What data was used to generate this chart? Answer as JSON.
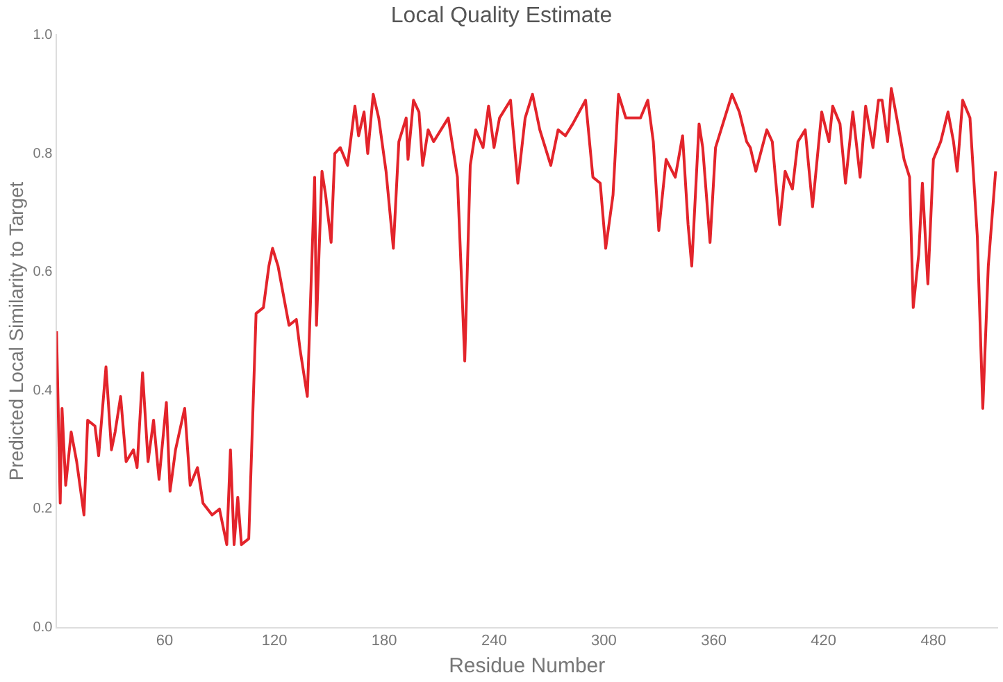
{
  "chart_data": {
    "type": "line",
    "title": "Local Quality Estimate",
    "xlabel": "Residue Number",
    "ylabel": "Predicted Local Similarity to Target",
    "x": [
      1,
      3,
      4,
      6,
      9,
      12,
      16,
      18,
      22,
      24,
      28,
      31,
      33,
      36,
      39,
      43,
      45,
      48,
      51,
      54,
      57,
      61,
      63,
      66,
      71,
      74,
      78,
      81,
      86,
      90,
      94,
      96,
      98,
      100,
      102,
      106,
      110,
      114,
      117,
      119,
      122,
      128,
      132,
      134,
      138,
      142,
      143,
      146,
      148,
      151,
      153,
      156,
      160,
      164,
      166,
      169,
      171,
      174,
      177,
      181,
      185,
      188,
      192,
      193,
      196,
      199,
      201,
      204,
      207,
      211,
      215,
      220,
      224,
      227,
      230,
      234,
      237,
      240,
      243,
      249,
      253,
      257,
      261,
      265,
      271,
      275,
      279,
      283,
      290,
      294,
      298,
      301,
      305,
      308,
      312,
      316,
      320,
      324,
      327,
      330,
      334,
      339,
      343,
      346,
      348,
      352,
      354,
      358,
      361,
      366,
      370,
      374,
      378,
      380,
      383,
      389,
      392,
      396,
      399,
      403,
      406,
      410,
      414,
      419,
      423,
      425,
      429,
      432,
      436,
      440,
      443,
      447,
      450,
      452,
      455,
      457,
      460,
      464,
      467,
      469,
      472,
      474,
      477,
      480,
      484,
      488,
      491,
      493,
      496,
      500,
      504,
      507,
      510,
      514
    ],
    "series": [
      {
        "color": "#e3242b",
        "values": [
          0.5,
          0.21,
          0.37,
          0.24,
          0.33,
          0.28,
          0.19,
          0.35,
          0.34,
          0.29,
          0.44,
          0.3,
          0.33,
          0.39,
          0.28,
          0.3,
          0.27,
          0.43,
          0.28,
          0.35,
          0.25,
          0.38,
          0.23,
          0.3,
          0.37,
          0.24,
          0.27,
          0.21,
          0.19,
          0.2,
          0.14,
          0.3,
          0.14,
          0.22,
          0.14,
          0.15,
          0.53,
          0.54,
          0.61,
          0.64,
          0.61,
          0.51,
          0.52,
          0.47,
          0.39,
          0.76,
          0.51,
          0.77,
          0.73,
          0.65,
          0.8,
          0.81,
          0.78,
          0.88,
          0.83,
          0.87,
          0.8,
          0.9,
          0.86,
          0.77,
          0.64,
          0.82,
          0.86,
          0.79,
          0.89,
          0.87,
          0.78,
          0.84,
          0.82,
          0.84,
          0.86,
          0.76,
          0.45,
          0.78,
          0.84,
          0.81,
          0.88,
          0.81,
          0.86,
          0.89,
          0.75,
          0.86,
          0.9,
          0.84,
          0.78,
          0.84,
          0.83,
          0.85,
          0.89,
          0.76,
          0.75,
          0.64,
          0.73,
          0.9,
          0.86,
          0.86,
          0.86,
          0.89,
          0.82,
          0.67,
          0.79,
          0.76,
          0.83,
          0.68,
          0.61,
          0.85,
          0.81,
          0.65,
          0.81,
          0.86,
          0.9,
          0.87,
          0.82,
          0.81,
          0.77,
          0.84,
          0.82,
          0.68,
          0.77,
          0.74,
          0.82,
          0.84,
          0.71,
          0.87,
          0.82,
          0.88,
          0.85,
          0.75,
          0.87,
          0.76,
          0.88,
          0.81,
          0.89,
          0.89,
          0.82,
          0.91,
          0.86,
          0.79,
          0.76,
          0.54,
          0.63,
          0.75,
          0.58,
          0.79,
          0.82,
          0.87,
          0.82,
          0.77,
          0.89,
          0.86,
          0.66,
          0.37,
          0.61,
          0.77
        ]
      }
    ],
    "xlim": [
      1,
      515
    ],
    "ylim": [
      0,
      1
    ],
    "xticks": [
      60,
      120,
      180,
      240,
      300,
      360,
      420,
      480
    ],
    "yticks": [
      {
        "value": 0,
        "label": "0.0"
      },
      {
        "value": 0.2,
        "label": "0.2"
      },
      {
        "value": 0.4,
        "label": "0.4"
      },
      {
        "value": 0.6,
        "label": "0.6"
      },
      {
        "value": 0.8,
        "label": "0.8"
      },
      {
        "value": 1,
        "label": "1.0"
      }
    ],
    "marker": "none",
    "line_style": "solid"
  }
}
